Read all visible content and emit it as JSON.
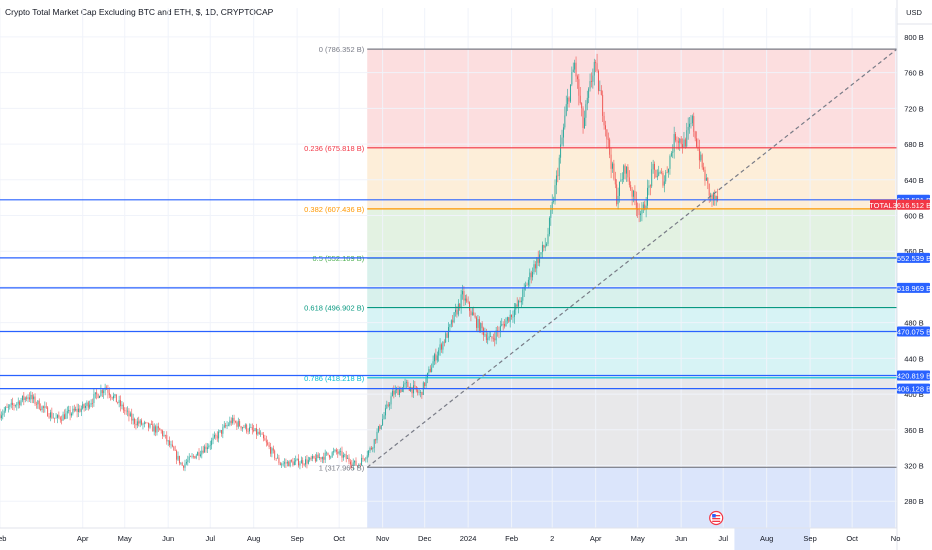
{
  "header": {
    "title": "Crypto Total Market Cap Excluding BTC and ETH, $, 1D, CRYPTOCAP",
    "currency": "USD"
  },
  "colors": {
    "up": "#26a69a",
    "down": "#ef5350",
    "tag_blue": "#2962ff",
    "tag_red": "#f23645",
    "grid": "#f0f3fa"
  },
  "chart_data": {
    "type": "candlestick",
    "title": "Crypto Total Market Cap Excluding BTC and ETH, $, 1D, CRYPTOCAP",
    "y_unit": "USD",
    "ylim": [
      250,
      810
    ],
    "y_ticks": [
      {
        "value": 280,
        "label": "280 B"
      },
      {
        "value": 320,
        "label": "320 B"
      },
      {
        "value": 360,
        "label": "360 B"
      },
      {
        "value": 400,
        "label": "400 B"
      },
      {
        "value": 440,
        "label": "440 B"
      },
      {
        "value": 480,
        "label": "480 B"
      },
      {
        "value": 520,
        "label": "520 B"
      },
      {
        "value": 560,
        "label": "560 B"
      },
      {
        "value": 600,
        "label": "600 B"
      },
      {
        "value": 640,
        "label": "640 B"
      },
      {
        "value": 680,
        "label": "680 B"
      },
      {
        "value": 720,
        "label": "720 B"
      },
      {
        "value": 760,
        "label": "760 B"
      },
      {
        "value": 800,
        "label": "800 B"
      }
    ],
    "x_ticks": [
      {
        "label": "Feb",
        "idx": 0
      },
      {
        "label": "Apr",
        "idx": 59
      },
      {
        "label": "May",
        "idx": 89
      },
      {
        "label": "Jun",
        "idx": 120
      },
      {
        "label": "Jul",
        "idx": 150
      },
      {
        "label": "Aug",
        "idx": 181
      },
      {
        "label": "Sep",
        "idx": 212
      },
      {
        "label": "Oct",
        "idx": 242
      },
      {
        "label": "Nov",
        "idx": 273
      },
      {
        "label": "Dec",
        "idx": 303
      },
      {
        "label": "2024",
        "idx": 334
      },
      {
        "label": "Feb",
        "idx": 365
      },
      {
        "label": "2",
        "idx": 394
      },
      {
        "label": "Apr",
        "idx": 425
      },
      {
        "label": "May",
        "idx": 455
      },
      {
        "label": "Jun",
        "idx": 486
      },
      {
        "label": "Jul",
        "idx": 516
      },
      {
        "label": "Aug",
        "idx": 547
      },
      {
        "label": "Sep",
        "idx": 578
      },
      {
        "label": "Oct",
        "idx": 608
      },
      {
        "label": "No",
        "idx": 639
      }
    ],
    "price_path": [
      {
        "idx": 0,
        "value": 378
      },
      {
        "idx": 20,
        "value": 398
      },
      {
        "idx": 40,
        "value": 372
      },
      {
        "idx": 60,
        "value": 385
      },
      {
        "idx": 75,
        "value": 408
      },
      {
        "idx": 95,
        "value": 370
      },
      {
        "idx": 115,
        "value": 358
      },
      {
        "idx": 130,
        "value": 320
      },
      {
        "idx": 150,
        "value": 345
      },
      {
        "idx": 165,
        "value": 370
      },
      {
        "idx": 185,
        "value": 355
      },
      {
        "idx": 200,
        "value": 322
      },
      {
        "idx": 220,
        "value": 325
      },
      {
        "idx": 240,
        "value": 335
      },
      {
        "idx": 255,
        "value": 320
      },
      {
        "idx": 265,
        "value": 340
      },
      {
        "idx": 280,
        "value": 400
      },
      {
        "idx": 290,
        "value": 410
      },
      {
        "idx": 300,
        "value": 400
      },
      {
        "idx": 310,
        "value": 440
      },
      {
        "idx": 320,
        "value": 470
      },
      {
        "idx": 330,
        "value": 510
      },
      {
        "idx": 340,
        "value": 480
      },
      {
        "idx": 350,
        "value": 460
      },
      {
        "idx": 360,
        "value": 480
      },
      {
        "idx": 370,
        "value": 500
      },
      {
        "idx": 380,
        "value": 540
      },
      {
        "idx": 390,
        "value": 570
      },
      {
        "idx": 397,
        "value": 640
      },
      {
        "idx": 404,
        "value": 720
      },
      {
        "idx": 410,
        "value": 770
      },
      {
        "idx": 416,
        "value": 700
      },
      {
        "idx": 424,
        "value": 770
      },
      {
        "idx": 430,
        "value": 720
      },
      {
        "idx": 440,
        "value": 620
      },
      {
        "idx": 446,
        "value": 655
      },
      {
        "idx": 452,
        "value": 620
      },
      {
        "idx": 458,
        "value": 600
      },
      {
        "idx": 466,
        "value": 650
      },
      {
        "idx": 474,
        "value": 640
      },
      {
        "idx": 482,
        "value": 690
      },
      {
        "idx": 488,
        "value": 680
      },
      {
        "idx": 494,
        "value": 705
      },
      {
        "idx": 500,
        "value": 660
      },
      {
        "idx": 507,
        "value": 620
      },
      {
        "idx": 512,
        "value": 616.5
      }
    ],
    "last_index": 512,
    "last_value": 616.512,
    "x_max": 640,
    "fibonacci": {
      "start_idx": 262,
      "end_idx": 640,
      "levels": [
        {
          "ratio_label": "0",
          "value": 786.352,
          "label": "0 (786.352 B)",
          "line_color": "#787b86",
          "fill": "#fcdedf"
        },
        {
          "ratio_label": "0.236",
          "value": 675.818,
          "label": "0.236 (675.818 B)",
          "line_color": "#f23645",
          "fill": "#fdeed9"
        },
        {
          "ratio_label": "0.382",
          "value": 607.436,
          "label": "0.382 (607.436 B)",
          "line_color": "#ff9800",
          "fill": "#e3f2e2"
        },
        {
          "ratio_label": "0.5",
          "value": 552.169,
          "label": "0.5 (552.169 B)",
          "line_color": "#4caf50",
          "fill": "#d8f1ec"
        },
        {
          "ratio_label": "0.618",
          "value": 496.902,
          "label": "0.618 (496.902 B)",
          "line_color": "#089981",
          "fill": "#d7f3f5"
        },
        {
          "ratio_label": "0.786",
          "value": 418.218,
          "label": "0.786 (418.218 B)",
          "line_color": "#00bcd4",
          "fill": "#e8e8ea"
        },
        {
          "ratio_label": "1",
          "value": 317.965,
          "label": "1 (317.965 B)",
          "line_color": "#787b86",
          "fill": "#dbe5fb"
        }
      ]
    },
    "trend_line": {
      "from_idx": 262,
      "from_value": 317.965,
      "to_idx": 640,
      "to_value": 786.352
    },
    "horizontal_lines": [
      {
        "value": 617.581,
        "label": "617.581 B",
        "color": "#2962ff"
      },
      {
        "value": 552.539,
        "label": "552.539 B",
        "color": "#2962ff"
      },
      {
        "value": 518.969,
        "label": "518.969 B",
        "color": "#2962ff"
      },
      {
        "value": 470.075,
        "label": "470.075 B",
        "color": "#2962ff"
      },
      {
        "value": 420.819,
        "label": "420.819 B",
        "color": "#2962ff"
      },
      {
        "value": 406.128,
        "label": "406.128 B",
        "color": "#2962ff"
      }
    ],
    "price_tag": {
      "symbol": "TOTAL3",
      "value": 616.512,
      "label": "616.512 B"
    }
  }
}
